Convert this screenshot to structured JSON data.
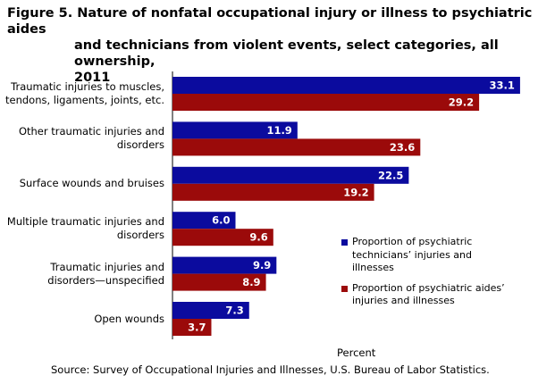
{
  "title": {
    "line1": "Figure 5. Nature of nonfatal occupational injury or illness to psychiatric aides",
    "line2": "and technicians from violent events, select categories, all ownership,",
    "line3": "2011"
  },
  "chart_data": {
    "type": "bar",
    "orientation": "horizontal",
    "categories": [
      [
        "Traumatic injuries to muscles,",
        "tendons, ligaments, joints, etc."
      ],
      [
        "Other traumatic injuries and",
        "disorders"
      ],
      [
        "Surface wounds and bruises"
      ],
      [
        "Multiple traumatic injuries and",
        "disorders"
      ],
      [
        "Traumatic  injuries and",
        "disorders—unspecified"
      ],
      [
        "Open wounds"
      ]
    ],
    "series": [
      {
        "name": "Proportion  of psychiatric technicians’ injuries and illnesses",
        "legend_lines": [
          "Proportion  of psychiatric",
          "technicians’ injuries and",
          "illnesses"
        ],
        "color": "#0B0B9E",
        "values": [
          33.1,
          11.9,
          22.5,
          6.0,
          9.9,
          7.3
        ],
        "labels": [
          "33.1",
          "11.9",
          "22.5",
          "6.0",
          "9.9",
          "7.3"
        ]
      },
      {
        "name": "Proportion  of psychiatric aides’ injuries and illnesses",
        "legend_lines": [
          "Proportion  of psychiatric aides’",
          "injuries and illnesses"
        ],
        "color": "#9B0A0A",
        "values": [
          29.2,
          23.6,
          19.2,
          9.6,
          8.9,
          3.7
        ],
        "labels": [
          "29.2",
          "23.6",
          "19.2",
          "9.6",
          "8.9",
          "3.7"
        ]
      }
    ],
    "xlabel": "Percent",
    "xlim": [
      0,
      36
    ],
    "grid": false,
    "legend_position": "bottom-right",
    "label_color": "#ffffff"
  },
  "source": "Source:  Survey  of  Occupational  Injuries and Illnesses,  U.S. Bureau  of Labor Statistics."
}
